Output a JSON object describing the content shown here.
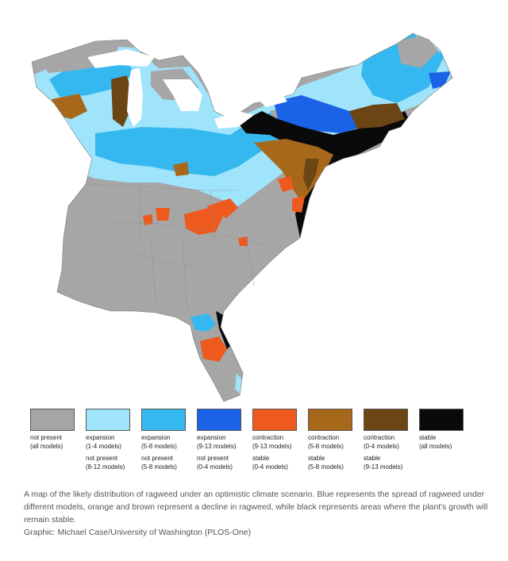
{
  "legend": {
    "items": [
      {
        "color": "#a6a6a6",
        "line1": "not present",
        "line2": "(all models)",
        "line3": "",
        "line4": ""
      },
      {
        "color": "#9fe4fb",
        "line1": "expansion",
        "line2": "(1-4 models)",
        "line3": "not present",
        "line4": "(8-12 models)"
      },
      {
        "color": "#35b8f0",
        "line1": "expansion",
        "line2": "(5-8 models)",
        "line3": "not present",
        "line4": "(5-8 models)"
      },
      {
        "color": "#1a63e6",
        "line1": "expansion",
        "line2": "(9-13 models)",
        "line3": "not present",
        "line4": "(0-4 models)"
      },
      {
        "color": "#ee5a1e",
        "line1": "contraction",
        "line2": "(9-13 models)",
        "line3": "stable",
        "line4": "(0-4 models)"
      },
      {
        "color": "#a8681c",
        "line1": "contraction",
        "line2": "(5-8 models)",
        "line3": "stable",
        "line4": "(5-8 models)"
      },
      {
        "color": "#6b4614",
        "line1": "contraction",
        "line2": "(0-4 models)",
        "line3": "stable",
        "line4": "(9-13 models)"
      },
      {
        "color": "#0a0a0a",
        "line1": "stable",
        "line2": "(all models)",
        "line3": "",
        "line4": ""
      }
    ]
  },
  "caption": {
    "text": "A map of the likely distribution of ragweed under an optimistic climate scenario. Blue represents the spread of ragweed under different models, orange and brown represent a decline in ragweed, while black represents areas where the plant's growth will remain stable.",
    "credit": "Graphic: Michael Case/University of Washington (PLOS-One)"
  }
}
